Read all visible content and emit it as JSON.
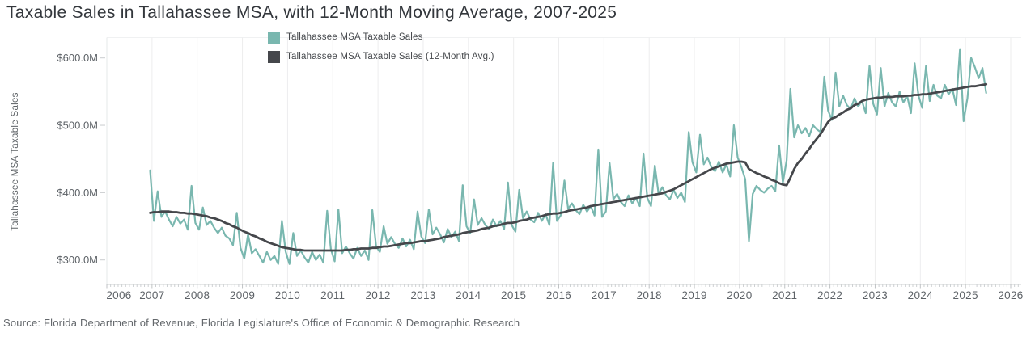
{
  "page": {
    "title": "Taxable Sales in Tallahassee MSA, with 12-Month Moving Average, 2007-2025",
    "source": "Source: Florida Department of Revenue, Florida Legislature's Office of Economic & Demographic Research"
  },
  "chart_data": {
    "type": "line",
    "title": "Taxable Sales in Tallahassee MSA, with 12-Month Moving Average, 2007-2025",
    "xlabel": "",
    "ylabel": "Tallahassee MSA Taxable Sales",
    "y_unit": "USD millions",
    "x_frequency": "monthly",
    "x_start_month": "2007-01",
    "x_end_month": "2025-07",
    "x_axis_range": [
      2006,
      2026.2
    ],
    "x_tick_years": [
      2006,
      2007,
      2008,
      2009,
      2010,
      2011,
      2012,
      2013,
      2014,
      2015,
      2016,
      2017,
      2018,
      2019,
      2020,
      2021,
      2022,
      2023,
      2024,
      2025,
      2026
    ],
    "y_axis_range_millions": [
      264,
      630
    ],
    "y_ticks": [
      {
        "value": 300,
        "label": "$300.0M"
      },
      {
        "value": 400,
        "label": "$400.0M"
      },
      {
        "value": 500,
        "label": "$500.0M"
      },
      {
        "value": 600,
        "label": "$600.0M"
      }
    ],
    "grid": "vertical-year-gridlines-only",
    "legend_position": "top-center",
    "series": [
      {
        "name": "Tallahassee MSA Taxable Sales",
        "color": "#79b7af",
        "line_width": 2.2,
        "values_millions": [
          433,
          358,
          402,
          364,
          372,
          360,
          350,
          364,
          354,
          360,
          345,
          410,
          355,
          345,
          378,
          352,
          358,
          348,
          340,
          348,
          336,
          332,
          322,
          370,
          318,
          302,
          338,
          310,
          316,
          306,
          296,
          312,
          300,
          306,
          294,
          358,
          312,
          294,
          340,
          306,
          314,
          304,
          296,
          312,
          300,
          308,
          296,
          373,
          316,
          298,
          375,
          310,
          320,
          310,
          302,
          318,
          306,
          314,
          300,
          374,
          320,
          312,
          350,
          324,
          334,
          324,
          318,
          332,
          320,
          330,
          316,
          372,
          335,
          325,
          375,
          338,
          348,
          338,
          326,
          346,
          334,
          342,
          328,
          411,
          350,
          340,
          390,
          352,
          362,
          352,
          346,
          360,
          350,
          358,
          346,
          415,
          352,
          342,
          404,
          362,
          372,
          360,
          356,
          370,
          358,
          368,
          352,
          444,
          358,
          366,
          418,
          376,
          384,
          374,
          368,
          382,
          372,
          380,
          366,
          464,
          364,
          372,
          444,
          390,
          398,
          386,
          380,
          396,
          384,
          392,
          380,
          458,
          392,
          380,
          440,
          398,
          408,
          396,
          390,
          404,
          392,
          400,
          386,
          490,
          445,
          430,
          486,
          442,
          452,
          438,
          432,
          446,
          430,
          442,
          424,
          500,
          452,
          438,
          420,
          328,
          398,
          410,
          404,
          400,
          406,
          410,
          402,
          470,
          415,
          448,
          554,
          482,
          500,
          488,
          496,
          484,
          500,
          494,
          490,
          572,
          522,
          508,
          578,
          528,
          544,
          530,
          524,
          540,
          528,
          536,
          518,
          588,
          532,
          516,
          585,
          528,
          548,
          534,
          528,
          550,
          534,
          544,
          518,
          592,
          544,
          526,
          588,
          536,
          560,
          544,
          540,
          560,
          546,
          554,
          530,
          612,
          506,
          540,
          600,
          586,
          570,
          585,
          548
        ]
      },
      {
        "name": "Tallahassee MSA Taxable Sales (12-Month Avg.)",
        "color": "#45474b",
        "line_width": 2.8,
        "values_millions": [
          370,
          371,
          371,
          372,
          372,
          372,
          371,
          371,
          370,
          370,
          369,
          369,
          368,
          367,
          366,
          365,
          363,
          362,
          360,
          358,
          355,
          353,
          350,
          348,
          345,
          342,
          340,
          337,
          335,
          332,
          330,
          327,
          325,
          323,
          321,
          319,
          318,
          317,
          316,
          315,
          315,
          314,
          314,
          314,
          314,
          314,
          314,
          314,
          314,
          314,
          314,
          314,
          315,
          315,
          316,
          316,
          317,
          317,
          317,
          318,
          318,
          319,
          320,
          320,
          321,
          322,
          323,
          324,
          325,
          325,
          326,
          327,
          328,
          328,
          329,
          330,
          331,
          332,
          334,
          335,
          336,
          337,
          338,
          340,
          341,
          342,
          343,
          344,
          346,
          347,
          348,
          350,
          351,
          352,
          354,
          355,
          355,
          356,
          358,
          359,
          360,
          362,
          363,
          364,
          365,
          367,
          368,
          369,
          369,
          370,
          371,
          373,
          374,
          375,
          376,
          377,
          378,
          380,
          381,
          382,
          383,
          384,
          385,
          386,
          387,
          388,
          389,
          390,
          391,
          392,
          393,
          394,
          395,
          396,
          397,
          398,
          399,
          401,
          403,
          405,
          408,
          411,
          414,
          417,
          420,
          423,
          426,
          429,
          432,
          435,
          437,
          439,
          441,
          443,
          444,
          445,
          446,
          446,
          445,
          435,
          432,
          429,
          427,
          424,
          422,
          419,
          417,
          414,
          412,
          411,
          422,
          435,
          444,
          450,
          458,
          465,
          473,
          480,
          487,
          496,
          505,
          510,
          512,
          516,
          519,
          523,
          525,
          530,
          532,
          536,
          538,
          539,
          540,
          541,
          541,
          542,
          542,
          542,
          543,
          543,
          543,
          544,
          544,
          545,
          545,
          546,
          546,
          547,
          548,
          549,
          550,
          551,
          552,
          553,
          554,
          555,
          556,
          557,
          558,
          558,
          559,
          560,
          561
        ]
      }
    ]
  },
  "colors": {
    "background": "#ffffff",
    "title_text": "#33373c",
    "axis_text": "#5d6267",
    "gridline": "#ededee",
    "axis_line": "#cdd0d2",
    "source_text": "#64686c"
  }
}
